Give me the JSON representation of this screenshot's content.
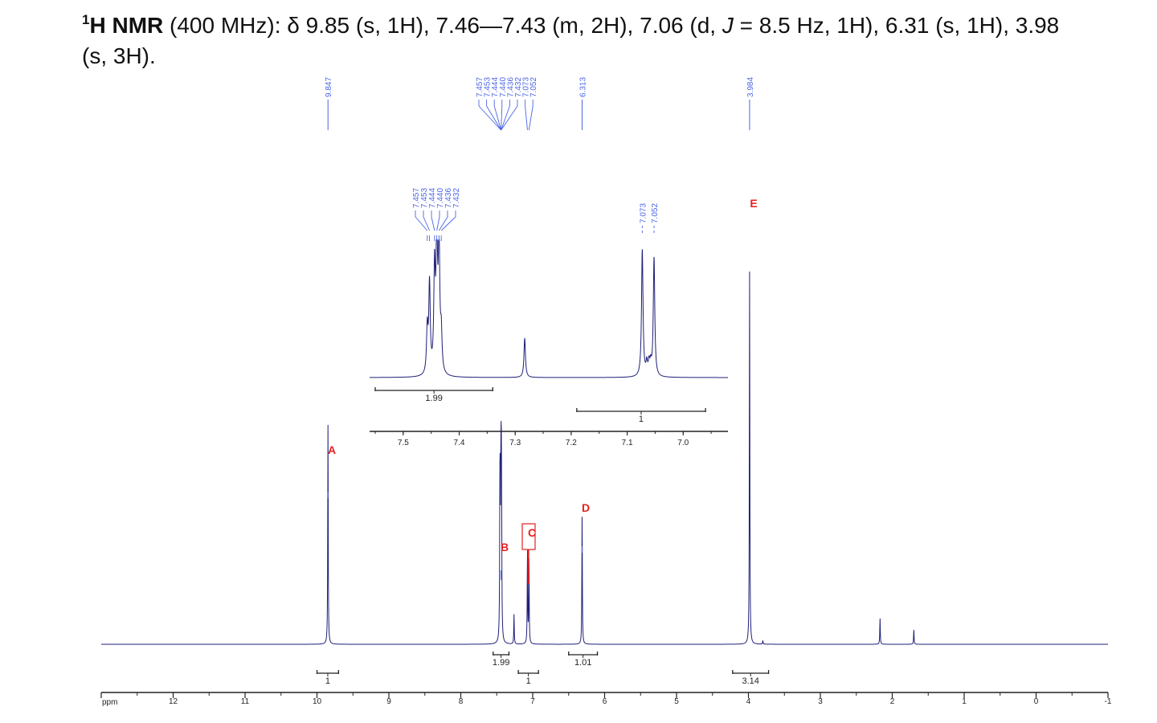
{
  "header": {
    "nucleus_sup": "1",
    "nucleus": "H NMR",
    "line1_a": " (400 MHz): δ 9.85 (s, 1H), 7.46—7.43 (m, 2H), 7.06 (d, ",
    "j_symbol": "J",
    "line1_b": " = 8.5 Hz, 1H), 6.31 (s, 1H), 3.98",
    "line2": "(s, 3H)."
  },
  "chart_data": [
    {
      "type": "line",
      "axis_unit_label": "ppm",
      "xlim": [
        13.0,
        -1.0
      ],
      "x_ticks": [
        "12",
        "11",
        "10",
        "9",
        "8",
        "7",
        "6",
        "5",
        "4",
        "3",
        "2",
        "1",
        "0",
        "-1"
      ],
      "peaks": [
        {
          "ppm": 9.847,
          "rel_height": 0.59
        },
        {
          "ppm": 7.457,
          "rel_height": 0.26
        },
        {
          "ppm": 7.453,
          "rel_height": 0.3
        },
        {
          "ppm": 7.444,
          "rel_height": 0.25
        },
        {
          "ppm": 7.44,
          "rel_height": 0.27
        },
        {
          "ppm": 7.436,
          "rel_height": 0.26
        },
        {
          "ppm": 7.432,
          "rel_height": 0.22
        },
        {
          "ppm": 7.26,
          "rel_height": 0.08
        },
        {
          "ppm": 7.073,
          "rel_height": 0.25
        },
        {
          "ppm": 7.052,
          "rel_height": 0.23
        },
        {
          "ppm": 6.313,
          "rel_height": 0.35
        },
        {
          "ppm": 3.984,
          "rel_height": 1.0
        },
        {
          "ppm": 3.8,
          "rel_height": 0.01
        },
        {
          "ppm": 2.17,
          "rel_height": 0.07
        },
        {
          "ppm": 1.7,
          "rel_height": 0.04
        }
      ],
      "peak_labels": [
        {
          "text": "9.847",
          "ppm": 9.847
        },
        {
          "text": "7.457",
          "ppm": 7.457
        },
        {
          "text": "7.453",
          "ppm": 7.453
        },
        {
          "text": "7.444",
          "ppm": 7.444
        },
        {
          "text": "7.440",
          "ppm": 7.44
        },
        {
          "text": "7.436",
          "ppm": 7.436
        },
        {
          "text": "7.432",
          "ppm": 7.432
        },
        {
          "text": "7.073",
          "ppm": 7.073
        },
        {
          "text": "7.052",
          "ppm": 7.052
        },
        {
          "text": "6.313",
          "ppm": 6.313
        },
        {
          "text": "3.984",
          "ppm": 3.984
        }
      ],
      "integrals": [
        {
          "label": "1",
          "from_ppm": 10.0,
          "to_ppm": 9.7,
          "row": 2
        },
        {
          "label": "1.99",
          "from_ppm": 7.55,
          "to_ppm": 7.33,
          "row": 1
        },
        {
          "label": "1",
          "from_ppm": 7.2,
          "to_ppm": 6.92,
          "row": 2
        },
        {
          "label": "1.01",
          "from_ppm": 6.5,
          "to_ppm": 6.1,
          "row": 1
        },
        {
          "label": "3.14",
          "from_ppm": 4.22,
          "to_ppm": 3.72,
          "row": 2
        }
      ],
      "markers": [
        {
          "text": "A",
          "ppm": 9.6
        },
        {
          "text": "B",
          "ppm": 7.5
        },
        {
          "text": "C",
          "ppm": 7.05,
          "boxed": true
        },
        {
          "text": "D",
          "ppm": 6.25
        },
        {
          "text": "E",
          "ppm": 4.03
        }
      ]
    },
    {
      "type": "line",
      "inset": true,
      "xlim": [
        7.56,
        6.92
      ],
      "x_ticks": [
        "7.5",
        "7.4",
        "7.3",
        "7.2",
        "7.1",
        "7.0"
      ],
      "peaks": [
        {
          "ppm": 7.457,
          "rel_height": 0.33
        },
        {
          "ppm": 7.453,
          "rel_height": 0.66
        },
        {
          "ppm": 7.444,
          "rel_height": 0.75
        },
        {
          "ppm": 7.44,
          "rel_height": 1.0
        },
        {
          "ppm": 7.436,
          "rel_height": 0.98
        },
        {
          "ppm": 7.432,
          "rel_height": 0.27
        },
        {
          "ppm": 7.283,
          "rel_height": 0.29
        },
        {
          "ppm": 7.073,
          "rel_height": 0.94
        },
        {
          "ppm": 7.065,
          "rel_height": 0.09
        },
        {
          "ppm": 7.061,
          "rel_height": 0.09
        },
        {
          "ppm": 7.058,
          "rel_height": 0.08
        },
        {
          "ppm": 7.052,
          "rel_height": 0.88
        }
      ],
      "peak_labels": [
        {
          "text": "7.457",
          "ppm": 7.457
        },
        {
          "text": "7.453",
          "ppm": 7.453
        },
        {
          "text": "7.444",
          "ppm": 7.444
        },
        {
          "text": "7.440",
          "ppm": 7.44
        },
        {
          "text": "7.436",
          "ppm": 7.436
        },
        {
          "text": "7.432",
          "ppm": 7.432
        },
        {
          "text": "7.073",
          "ppm": 7.073
        },
        {
          "text": "7.052",
          "ppm": 7.052
        }
      ],
      "integrals": [
        {
          "label": "1.99",
          "from_ppm": 7.55,
          "to_ppm": 7.34,
          "row": 1
        },
        {
          "label": "1",
          "from_ppm": 7.19,
          "to_ppm": 6.96,
          "row": 2
        }
      ]
    }
  ],
  "colors": {
    "spectrum": "#1f1f7a",
    "peak_label": "#4a65e6",
    "marker": "#e62020",
    "axis": "#222222"
  }
}
